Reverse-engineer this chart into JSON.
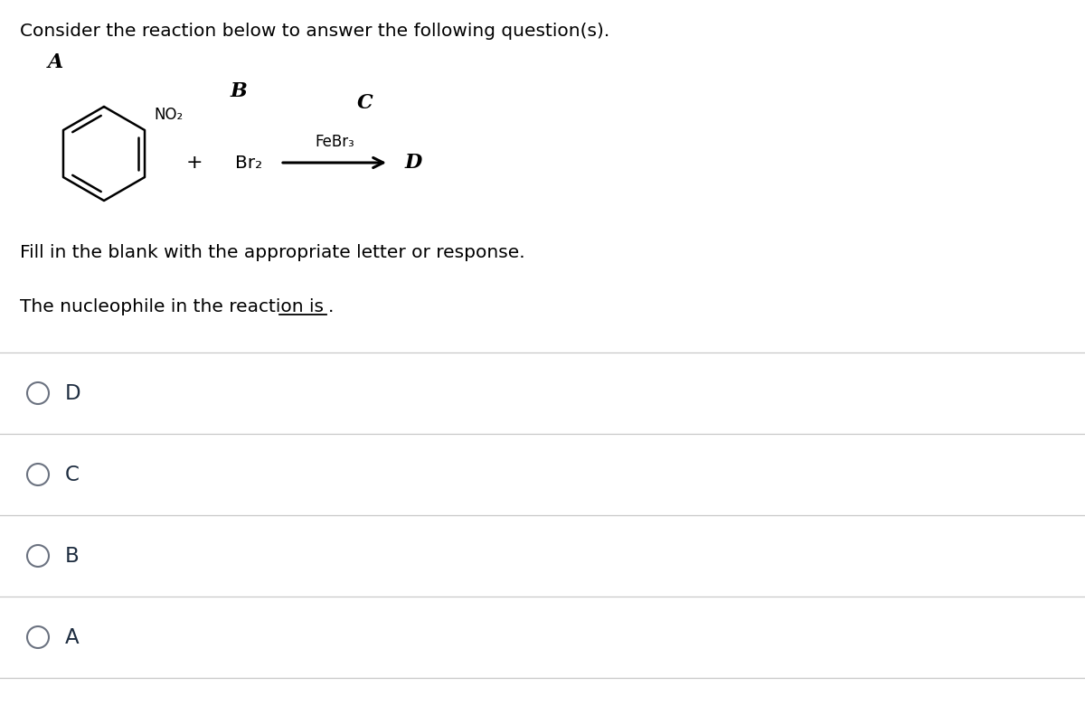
{
  "bg_color": "#ffffff",
  "text_color": "#1a1a2e",
  "reaction_text_color": "#000000",
  "header_text": "Consider the reaction below to answer the following question(s).",
  "fill_text": "Fill in the blank with the appropriate letter or response.",
  "question_part1": "The nucleophile in the reaction is",
  "label_A": "A",
  "label_B": "B",
  "label_C": "C",
  "label_D": "D",
  "no2_label": "NO₂",
  "br2_label": "Br₂",
  "febr3_label": "FeBr₃",
  "plus_label": "+",
  "options": [
    "D",
    "C",
    "B",
    "A"
  ],
  "separator_color": "#c8c8c8",
  "circle_color": "#6b7280",
  "option_text_color": "#1e2d40",
  "header_fontsize": 14.5,
  "option_fontsize": 15.5,
  "reaction_fontsize": 13.5,
  "label_fontsize": 14
}
